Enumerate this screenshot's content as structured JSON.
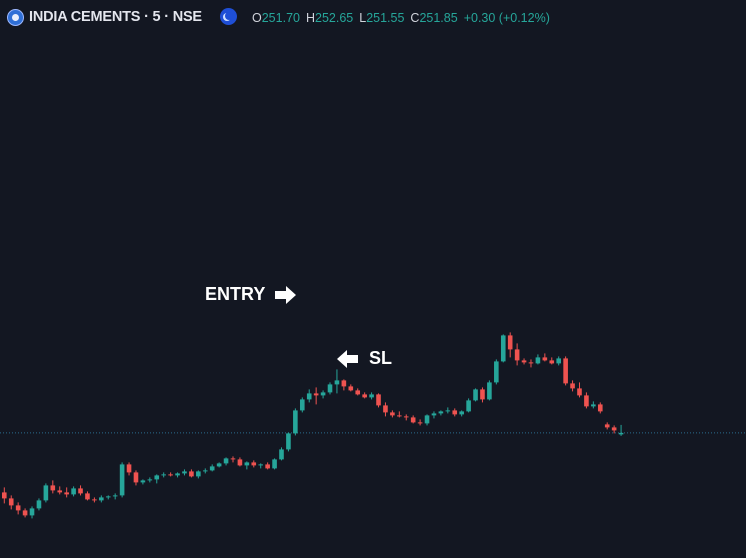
{
  "header": {
    "symbol_title": "INDIA CEMENTS · 5 · NSE",
    "ohlc": {
      "o_label": "O",
      "o_value": "251.70",
      "h_label": "H",
      "h_value": "252.65",
      "l_label": "L",
      "l_value": "251.55",
      "c_label": "C",
      "c_value": "251.85",
      "change": "+0.30 (+0.12%)"
    }
  },
  "annotations": {
    "entry": "ENTRY",
    "sl": "SL"
  },
  "colors": {
    "background": "#131722",
    "up": "#26a69a",
    "down": "#ef5350",
    "price_line": "#2a6d8f"
  },
  "chart_data": {
    "type": "candlestick",
    "current_price": 251.85,
    "ohlc": [
      [
        245.9,
        246.4,
        244.8,
        245.3
      ],
      [
        245.3,
        245.6,
        244.2,
        244.6
      ],
      [
        244.6,
        244.9,
        243.7,
        244.1
      ],
      [
        244.1,
        244.3,
        243.4,
        243.6
      ],
      [
        243.6,
        244.5,
        243.3,
        244.3
      ],
      [
        244.3,
        245.3,
        244.1,
        245.1
      ],
      [
        245.1,
        246.8,
        244.9,
        246.6
      ],
      [
        246.6,
        247.1,
        245.8,
        246.1
      ],
      [
        246.1,
        246.5,
        245.7,
        245.9
      ],
      [
        245.9,
        246.4,
        245.4,
        245.7
      ],
      [
        245.7,
        246.5,
        245.5,
        246.3
      ],
      [
        246.3,
        246.6,
        245.6,
        245.8
      ],
      [
        245.8,
        246.0,
        245.1,
        245.2
      ],
      [
        245.2,
        245.4,
        244.9,
        245.1
      ],
      [
        245.1,
        245.6,
        244.9,
        245.4
      ],
      [
        245.4,
        245.6,
        245.2,
        245.5
      ],
      [
        245.5,
        245.8,
        245.2,
        245.6
      ],
      [
        245.6,
        248.9,
        245.4,
        248.7
      ],
      [
        248.7,
        248.9,
        247.6,
        247.9
      ],
      [
        247.9,
        248.1,
        246.6,
        246.9
      ],
      [
        246.9,
        247.2,
        246.7,
        247.1
      ],
      [
        247.1,
        247.4,
        246.9,
        247.2
      ],
      [
        247.2,
        247.7,
        246.8,
        247.6
      ],
      [
        247.6,
        247.9,
        247.4,
        247.7
      ],
      [
        247.7,
        247.9,
        247.5,
        247.6
      ],
      [
        247.6,
        247.9,
        247.4,
        247.8
      ],
      [
        247.8,
        248.2,
        247.6,
        248.0
      ],
      [
        248.0,
        248.2,
        247.4,
        247.5
      ],
      [
        247.5,
        248.1,
        247.3,
        248.0
      ],
      [
        248.0,
        248.3,
        247.8,
        248.1
      ],
      [
        248.1,
        248.7,
        248.0,
        248.5
      ],
      [
        248.5,
        248.9,
        248.4,
        248.8
      ],
      [
        248.8,
        249.4,
        248.6,
        249.3
      ],
      [
        249.3,
        249.5,
        248.9,
        249.2
      ],
      [
        249.2,
        249.4,
        248.5,
        248.6
      ],
      [
        248.6,
        249.0,
        248.2,
        248.9
      ],
      [
        248.9,
        249.1,
        248.4,
        248.6
      ],
      [
        248.6,
        248.8,
        248.3,
        248.7
      ],
      [
        248.7,
        248.9,
        248.2,
        248.3
      ],
      [
        248.3,
        249.3,
        248.2,
        249.2
      ],
      [
        249.2,
        250.4,
        249.1,
        250.2
      ],
      [
        250.2,
        251.9,
        250.0,
        251.8
      ],
      [
        251.8,
        254.3,
        251.6,
        254.1
      ],
      [
        254.1,
        255.4,
        253.9,
        255.2
      ],
      [
        255.2,
        256.2,
        254.9,
        255.8
      ],
      [
        255.8,
        256.4,
        254.7,
        255.6
      ],
      [
        255.6,
        256.1,
        255.3,
        255.9
      ],
      [
        255.9,
        256.9,
        255.7,
        256.7
      ],
      [
        256.7,
        258.2,
        255.8,
        257.1
      ],
      [
        257.1,
        257.2,
        256.1,
        256.5
      ],
      [
        256.5,
        256.7,
        256.0,
        256.1
      ],
      [
        256.1,
        256.3,
        255.6,
        255.7
      ],
      [
        255.7,
        255.9,
        255.3,
        255.4
      ],
      [
        255.4,
        255.9,
        255.2,
        255.7
      ],
      [
        255.7,
        255.8,
        254.4,
        254.6
      ],
      [
        254.6,
        254.9,
        253.5,
        253.9
      ],
      [
        253.9,
        254.1,
        253.4,
        253.6
      ],
      [
        253.6,
        254.0,
        253.4,
        253.5
      ],
      [
        253.5,
        253.7,
        253.1,
        253.4
      ],
      [
        253.4,
        253.6,
        252.8,
        252.9
      ],
      [
        252.9,
        253.2,
        252.6,
        252.8
      ],
      [
        252.8,
        253.7,
        252.6,
        253.6
      ],
      [
        253.6,
        254.0,
        253.3,
        253.8
      ],
      [
        253.8,
        254.1,
        253.6,
        254.0
      ],
      [
        254.0,
        254.4,
        253.8,
        254.1
      ],
      [
        254.1,
        254.3,
        253.5,
        253.7
      ],
      [
        253.7,
        254.1,
        253.5,
        254.0
      ],
      [
        254.0,
        255.3,
        253.9,
        255.1
      ],
      [
        255.1,
        256.3,
        255.0,
        256.2
      ],
      [
        256.2,
        256.4,
        254.9,
        255.2
      ],
      [
        255.2,
        257.1,
        255.1,
        256.9
      ],
      [
        256.9,
        259.2,
        256.7,
        259.0
      ],
      [
        259.0,
        261.7,
        258.9,
        261.6
      ],
      [
        261.6,
        261.9,
        259.4,
        260.2
      ],
      [
        260.2,
        260.8,
        258.6,
        259.1
      ],
      [
        259.1,
        259.3,
        258.7,
        258.9
      ],
      [
        258.9,
        259.2,
        258.4,
        258.8
      ],
      [
        258.8,
        259.7,
        258.7,
        259.4
      ],
      [
        259.4,
        259.8,
        259.0,
        259.1
      ],
      [
        259.1,
        259.4,
        258.7,
        258.8
      ],
      [
        258.8,
        259.5,
        258.6,
        259.3
      ],
      [
        259.3,
        259.5,
        256.6,
        256.8
      ],
      [
        256.8,
        257.1,
        256.0,
        256.3
      ],
      [
        256.3,
        256.9,
        255.4,
        255.6
      ],
      [
        255.6,
        255.9,
        254.3,
        254.5
      ],
      [
        254.5,
        255.0,
        254.3,
        254.7
      ],
      [
        254.7,
        254.9,
        253.8,
        254.0
      ],
      [
        252.7,
        252.9,
        252.2,
        252.4
      ],
      [
        252.4,
        252.6,
        251.8,
        252.1
      ],
      [
        251.7,
        252.65,
        251.55,
        251.85
      ]
    ],
    "annotations": [
      "ENTRY",
      "SL"
    ],
    "grid": false
  }
}
